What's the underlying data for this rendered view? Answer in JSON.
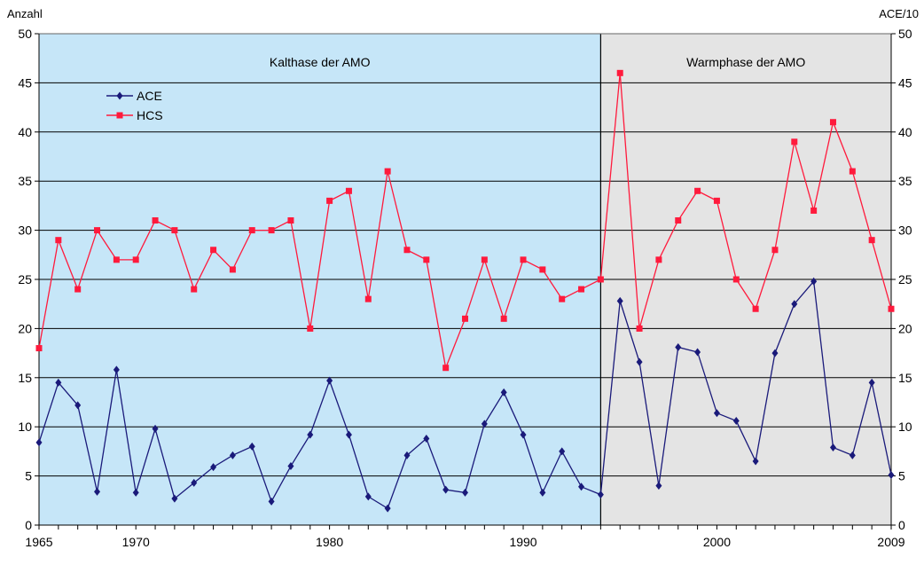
{
  "chart_data": {
    "type": "line",
    "left_axis_label": "Anzahl",
    "right_axis_label": "ACE/10",
    "ylim": [
      0,
      50
    ],
    "y_ticks": [
      0,
      5,
      10,
      15,
      20,
      25,
      30,
      35,
      40,
      45,
      50
    ],
    "xlim": [
      1965,
      2009
    ],
    "x_tick_labels": [
      1965,
      1970,
      1980,
      1990,
      2000,
      2009
    ],
    "phases": [
      {
        "label": "Kalthase der AMO",
        "start": 1965,
        "end": 1994,
        "color": "#c6e6f8"
      },
      {
        "label": "Warmphase der AMO",
        "start": 1994,
        "end": 2009,
        "color": "#e4e4e4"
      }
    ],
    "legend": {
      "position": "top-left",
      "entries": [
        "ACE",
        "HCS"
      ]
    },
    "x": [
      1965,
      1966,
      1967,
      1968,
      1969,
      1970,
      1971,
      1972,
      1973,
      1974,
      1975,
      1976,
      1977,
      1978,
      1979,
      1980,
      1981,
      1982,
      1983,
      1984,
      1985,
      1986,
      1987,
      1988,
      1989,
      1990,
      1991,
      1992,
      1993,
      1994,
      1995,
      1996,
      1997,
      1998,
      1999,
      2000,
      2001,
      2002,
      2003,
      2004,
      2005,
      2006,
      2007,
      2008,
      2009
    ],
    "series": [
      {
        "name": "ACE",
        "color": "#1a1a7a",
        "marker": "diamond",
        "values": [
          8.4,
          14.5,
          12.2,
          3.4,
          15.8,
          3.3,
          9.8,
          2.7,
          4.3,
          5.9,
          7.1,
          8.0,
          2.4,
          6.0,
          9.2,
          14.7,
          9.2,
          2.9,
          1.7,
          7.1,
          8.8,
          3.6,
          3.3,
          10.3,
          13.5,
          9.2,
          3.3,
          7.5,
          3.9,
          3.1,
          22.8,
          16.6,
          4.0,
          18.1,
          17.6,
          11.4,
          10.6,
          6.5,
          17.5,
          22.5,
          24.8,
          7.9,
          7.1,
          14.5,
          5.1
        ]
      },
      {
        "name": "HCS",
        "color": "#ff1a3c",
        "marker": "square",
        "values": [
          18,
          29,
          24,
          30,
          27,
          27,
          31,
          30,
          24,
          28,
          26,
          30,
          30,
          31,
          20,
          33,
          34,
          23,
          36,
          28,
          27,
          16,
          21,
          27,
          21,
          27,
          26,
          23,
          24,
          25,
          46,
          20,
          27,
          31,
          34,
          33,
          25,
          22,
          28,
          39,
          32,
          41,
          36,
          29,
          22
        ]
      }
    ]
  }
}
